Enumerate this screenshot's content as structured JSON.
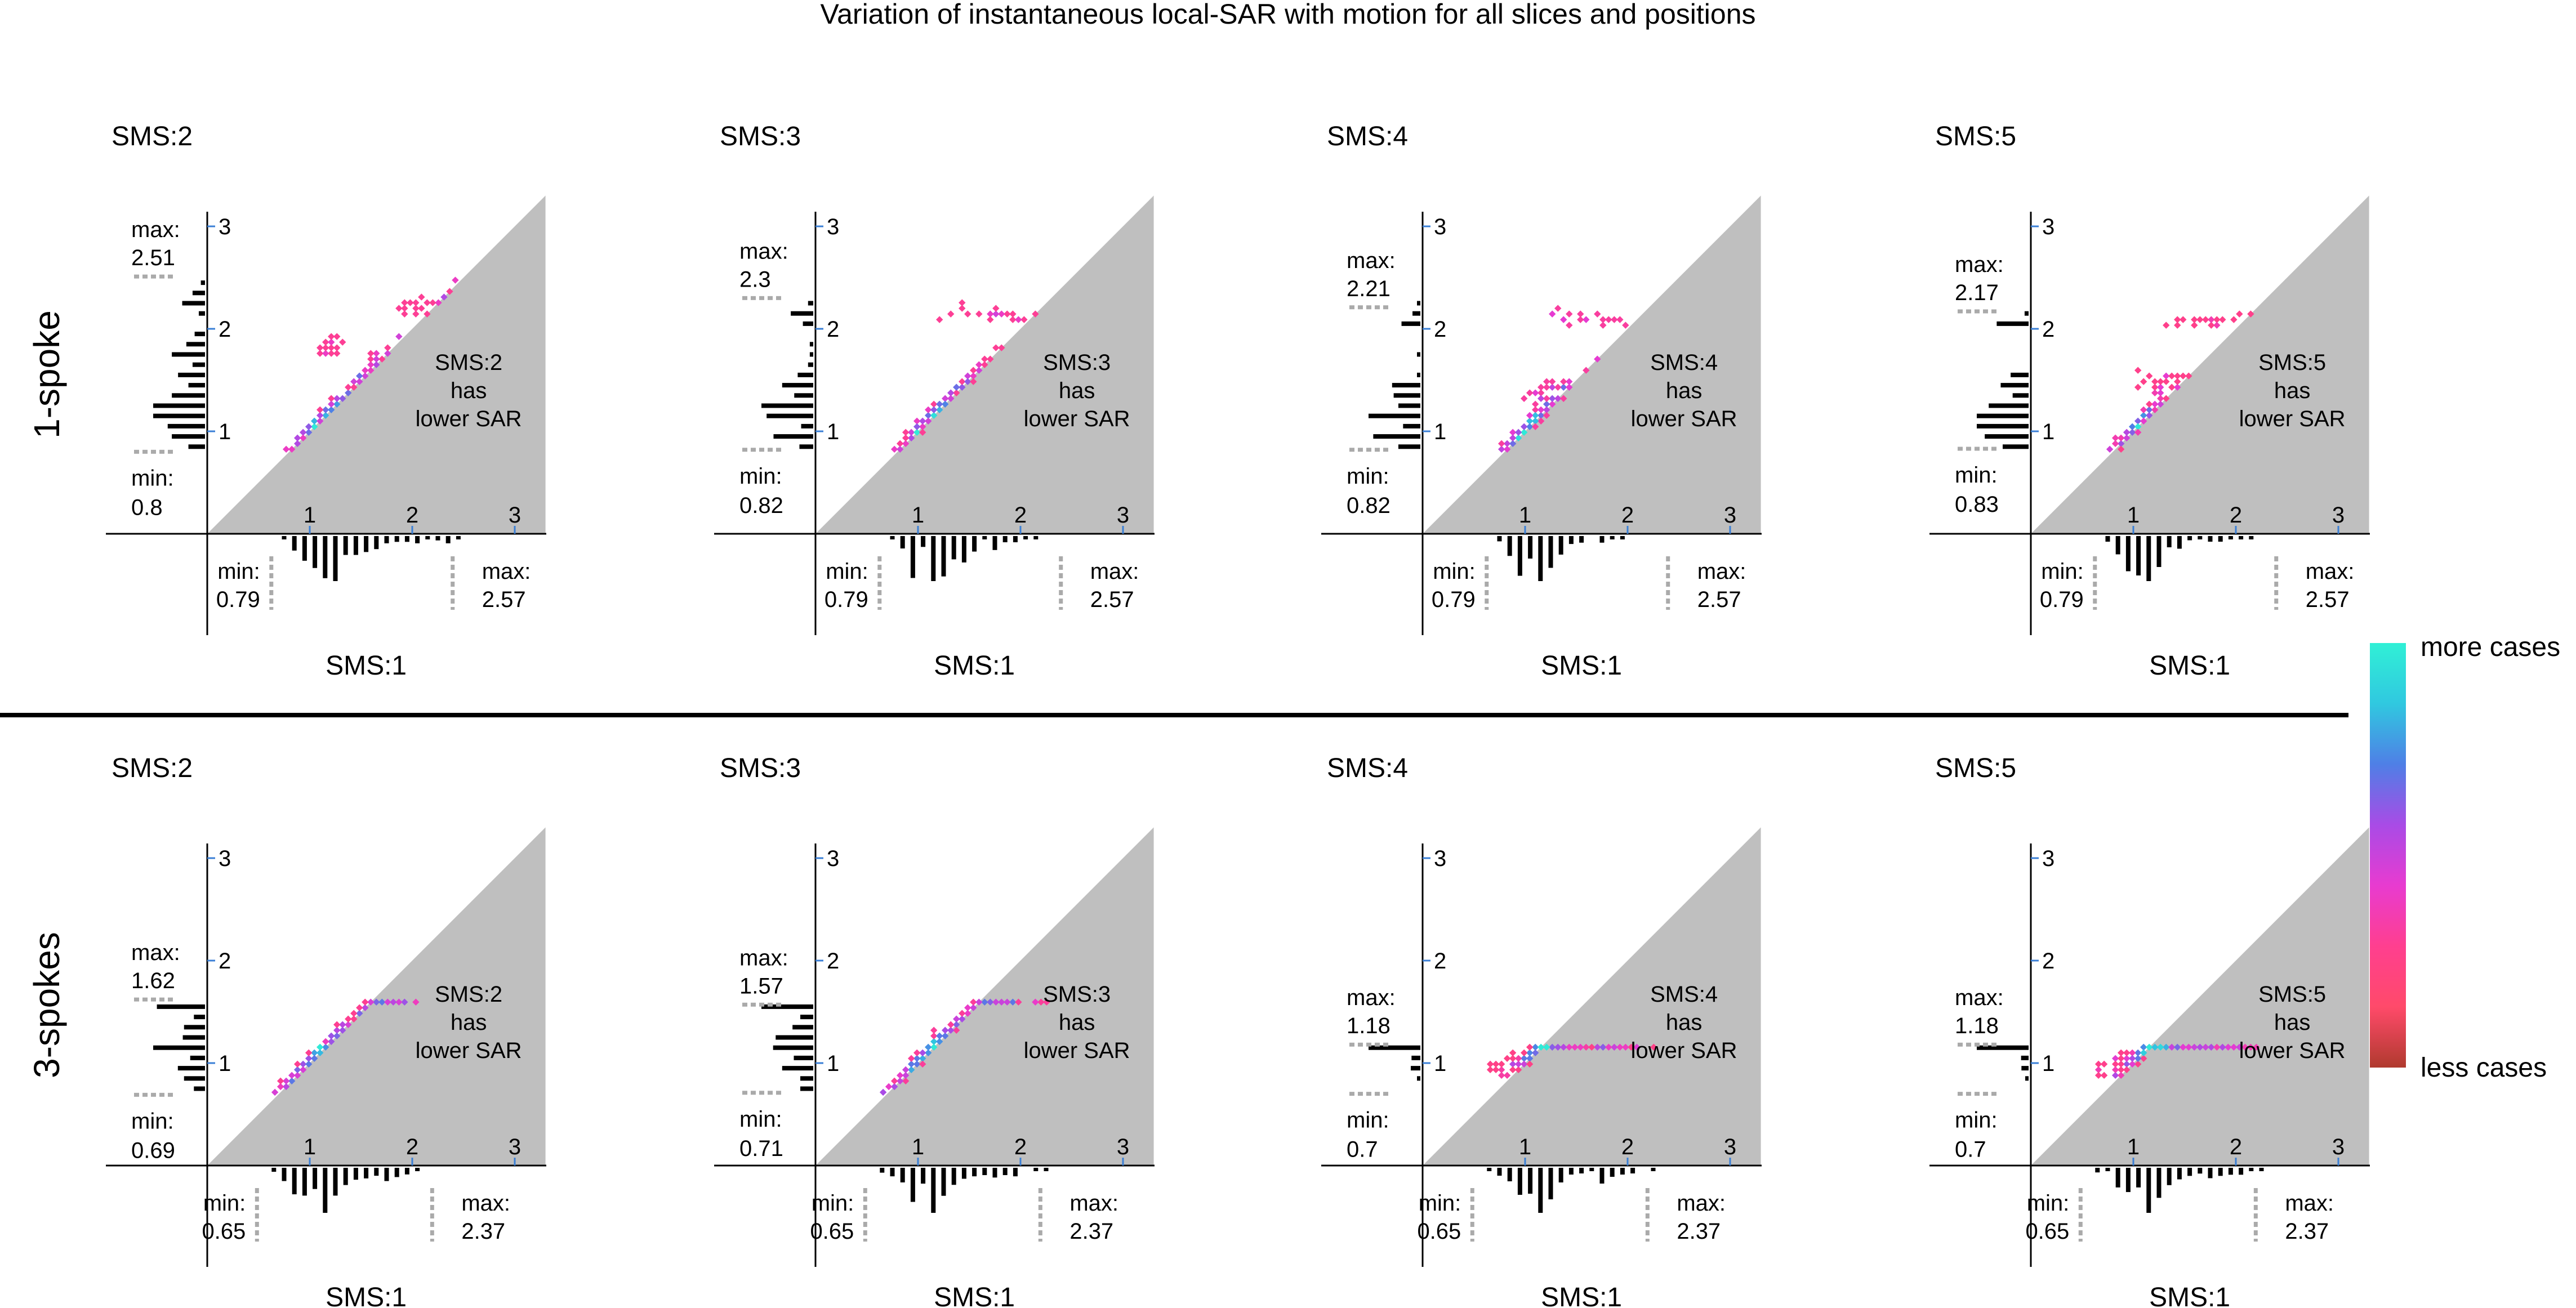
{
  "chart_data": {
    "type": "heatmap",
    "title": "Variation of instantaneous local-SAR with motion for all slices and positions",
    "row_labels": [
      "1-spoke",
      "3-spokes"
    ],
    "axis_ticks": [
      "1",
      "2",
      "3"
    ],
    "xlabel": "SMS:1",
    "lower_region_text": [
      "has",
      "lower SAR"
    ],
    "colorbar": {
      "top_label": "more cases",
      "bottom_label": "less cases",
      "colors": [
        "#b03a2e",
        "#ff4a6a",
        "#ff3f8f",
        "#e83bd0",
        "#a94be6",
        "#4f7fe6",
        "#30c8e0",
        "#30f0d6"
      ]
    },
    "min_label": "min:",
    "max_label": "max:",
    "axis_range": [
      0,
      3.3
    ],
    "panels": [
      {
        "row": 0,
        "col": 0,
        "name": "SMS:2",
        "y_min": "0.8",
        "y_max": "2.51",
        "x_min": "0.79",
        "x_max": "2.57",
        "y_min_v": 0.8,
        "y_max_v": 2.51,
        "x_min_v": 0.79,
        "x_max_v": 2.57,
        "clusters": [
          {
            "x": 1.1,
            "y": 1.05,
            "rx": 0.28,
            "ry": 0.22,
            "n": 110
          },
          {
            "x": 1.6,
            "y": 1.6,
            "rx": 0.25,
            "ry": 0.3,
            "n": 40
          },
          {
            "x": 2.2,
            "y": 2.2,
            "rx": 0.3,
            "ry": 0.12,
            "n": 22
          },
          {
            "x": 1.2,
            "y": 1.8,
            "rx": 0.15,
            "ry": 0.2,
            "n": 15
          }
        ]
      },
      {
        "row": 0,
        "col": 1,
        "name": "SMS:3",
        "y_min": "0.82",
        "y_max": "2.3",
        "x_min": "0.79",
        "x_max": "2.57",
        "y_min_v": 0.82,
        "y_max_v": 2.3,
        "x_min_v": 0.79,
        "x_max_v": 2.57,
        "clusters": [
          {
            "x": 1.1,
            "y": 1.05,
            "rx": 0.28,
            "ry": 0.22,
            "n": 110
          },
          {
            "x": 1.5,
            "y": 1.4,
            "rx": 0.25,
            "ry": 0.2,
            "n": 30
          },
          {
            "x": 1.7,
            "y": 2.15,
            "rx": 0.5,
            "ry": 0.08,
            "n": 22
          }
        ]
      },
      {
        "row": 0,
        "col": 2,
        "name": "SMS:4",
        "y_min": "0.82",
        "y_max": "2.21",
        "x_min": "0.79",
        "x_max": "2.57",
        "y_min_v": 0.82,
        "y_max_v": 2.21,
        "x_min_v": 0.79,
        "x_max_v": 2.57,
        "clusters": [
          {
            "x": 1.05,
            "y": 1.05,
            "rx": 0.28,
            "ry": 0.22,
            "n": 110
          },
          {
            "x": 1.3,
            "y": 1.4,
            "rx": 0.3,
            "ry": 0.12,
            "n": 30
          },
          {
            "x": 1.6,
            "y": 2.1,
            "rx": 0.5,
            "ry": 0.08,
            "n": 18
          }
        ]
      },
      {
        "row": 0,
        "col": 3,
        "name": "SMS:5",
        "y_min": "0.83",
        "y_max": "2.17",
        "x_min": "0.79",
        "x_max": "2.57",
        "y_min_v": 0.83,
        "y_max_v": 2.17,
        "x_min_v": 0.79,
        "x_max_v": 2.57,
        "clusters": [
          {
            "x": 1.05,
            "y": 1.05,
            "rx": 0.28,
            "ry": 0.22,
            "n": 110
          },
          {
            "x": 1.3,
            "y": 1.45,
            "rx": 0.3,
            "ry": 0.12,
            "n": 28
          },
          {
            "x": 1.7,
            "y": 2.08,
            "rx": 0.5,
            "ry": 0.06,
            "n": 18
          }
        ]
      },
      {
        "row": 1,
        "col": 0,
        "name": "SMS:2",
        "y_min": "0.69",
        "y_max": "1.62",
        "x_min": "0.65",
        "x_max": "2.37",
        "y_min_v": 0.69,
        "y_max_v": 1.62,
        "x_min_v": 0.65,
        "x_max_v": 2.37,
        "clusters": [
          {
            "x": 1.1,
            "y": 1.05,
            "rx": 0.4,
            "ry": 0.28,
            "n": 150
          },
          {
            "x": 1.7,
            "y": 1.05,
            "rx": 0.3,
            "ry": 0.15,
            "n": 35
          }
        ]
      },
      {
        "row": 1,
        "col": 1,
        "name": "SMS:3",
        "y_min": "0.71",
        "y_max": "1.57",
        "x_min": "0.65",
        "x_max": "2.37",
        "y_min_v": 0.71,
        "y_max_v": 1.57,
        "x_min_v": 0.65,
        "x_max_v": 2.37,
        "clusters": [
          {
            "x": 1.1,
            "y": 1.05,
            "rx": 0.38,
            "ry": 0.28,
            "n": 150
          },
          {
            "x": 1.8,
            "y": 0.98,
            "rx": 0.35,
            "ry": 0.12,
            "n": 35
          }
        ]
      },
      {
        "row": 1,
        "col": 2,
        "name": "SMS:4",
        "y_min": "0.7",
        "y_max": "1.18",
        "x_min": "0.65",
        "x_max": "2.37",
        "y_min_v": 0.7,
        "y_max_v": 1.18,
        "x_min_v": 0.65,
        "x_max_v": 2.37,
        "clusters": [
          {
            "x": 1.1,
            "y": 0.97,
            "rx": 0.35,
            "ry": 0.14,
            "n": 150
          },
          {
            "x": 1.8,
            "y": 0.95,
            "rx": 0.4,
            "ry": 0.12,
            "n": 45
          }
        ]
      },
      {
        "row": 1,
        "col": 3,
        "name": "SMS:5",
        "y_min": "0.7",
        "y_max": "1.18",
        "x_min": "0.65",
        "x_max": "2.37",
        "y_min_v": 0.7,
        "y_max_v": 1.18,
        "x_min_v": 0.65,
        "x_max_v": 2.37,
        "clusters": [
          {
            "x": 1.1,
            "y": 0.97,
            "rx": 0.35,
            "ry": 0.14,
            "n": 150
          },
          {
            "x": 1.8,
            "y": 0.95,
            "rx": 0.4,
            "ry": 0.12,
            "n": 45
          }
        ]
      }
    ]
  }
}
